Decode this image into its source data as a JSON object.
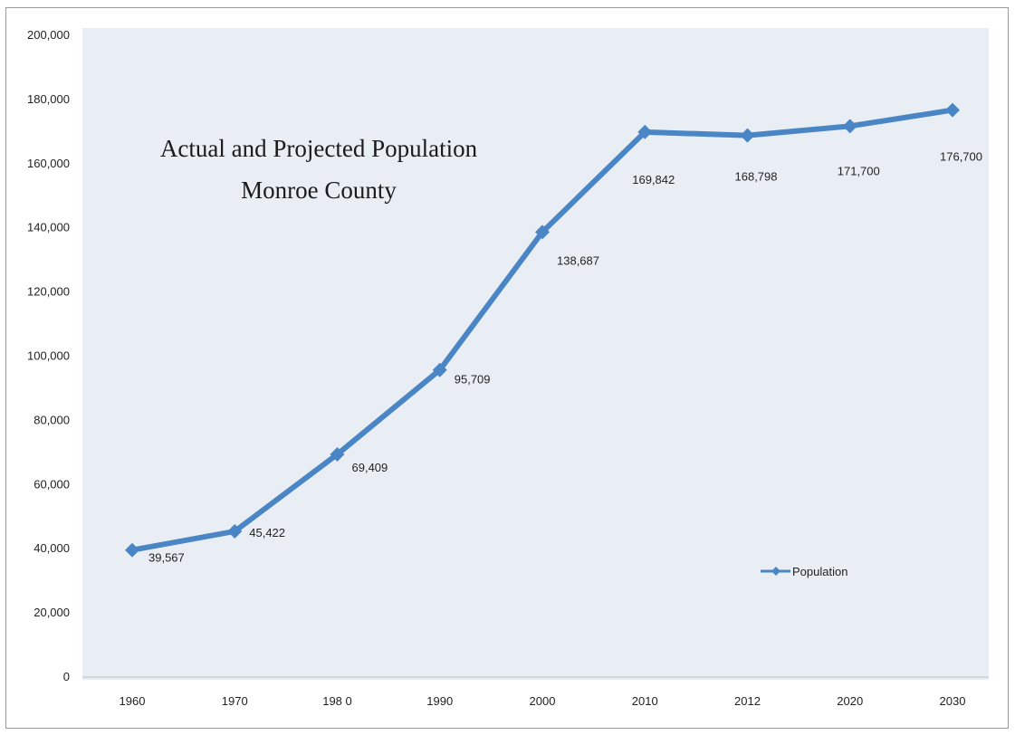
{
  "chart_data": {
    "type": "line",
    "title_lines": [
      "Actual and Projected Population",
      "Monroe County"
    ],
    "categories": [
      "1960",
      "1970",
      "198 0",
      "1990",
      "2000",
      "2010",
      "2012",
      "2020",
      "2030"
    ],
    "series": [
      {
        "name": "Population",
        "values": [
          39567,
          45422,
          69409,
          95709,
          138687,
          169842,
          168798,
          171700,
          176700
        ],
        "labels": [
          "39,567",
          "45,422",
          "69,409",
          "95,709",
          "138,687",
          "169,842",
          "168,798",
          "171,700",
          "176,700"
        ]
      }
    ],
    "y_ticks": [
      0,
      20000,
      40000,
      60000,
      80000,
      100000,
      120000,
      140000,
      160000,
      180000,
      200000
    ],
    "y_tick_labels": [
      "0",
      "20,000",
      "40,000",
      "60,000",
      "80,000",
      "100,000",
      "120,000",
      "140,000",
      "160,000",
      "180,000",
      "200,000"
    ],
    "ylim": [
      0,
      200000
    ],
    "grid": false,
    "legend_position": "right",
    "colors": {
      "line": "#4a86c5",
      "plot_background": "#e9eef4",
      "text": "#222222"
    }
  }
}
